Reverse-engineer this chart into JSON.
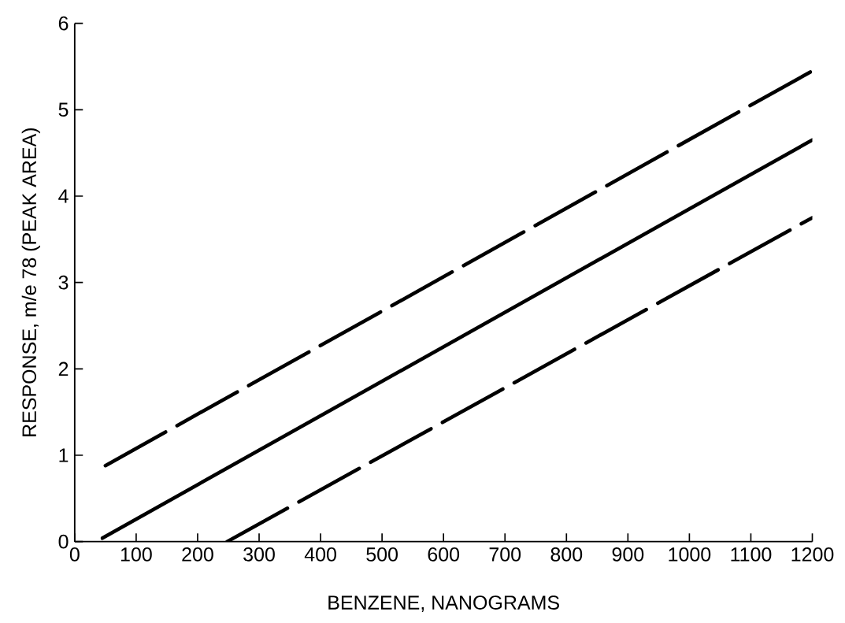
{
  "chart_data": {
    "type": "line",
    "xlabel": "BENZENE, NANOGRAMS",
    "ylabel": "RESPONSE, m/e 78 (PEAK AREA)",
    "xlim": [
      0,
      1200
    ],
    "ylim": [
      0,
      6
    ],
    "xticks": [
      0,
      100,
      200,
      300,
      400,
      500,
      600,
      700,
      800,
      900,
      1000,
      1100,
      1200
    ],
    "yticks": [
      0,
      1,
      2,
      3,
      4,
      5,
      6
    ],
    "grid": false,
    "marker": "none",
    "series": [
      {
        "color": "#000000",
        "line_style": "dashed",
        "x": [
          50,
          1200
        ],
        "values": [
          0.88,
          5.45
        ]
      },
      {
        "color": "#000000",
        "line_style": "solid",
        "x": [
          45,
          1200
        ],
        "values": [
          0.04,
          4.65
        ]
      },
      {
        "color": "#000000",
        "line_style": "dashed",
        "x": [
          248,
          1200
        ],
        "values": [
          0,
          3.75
        ]
      }
    ]
  }
}
